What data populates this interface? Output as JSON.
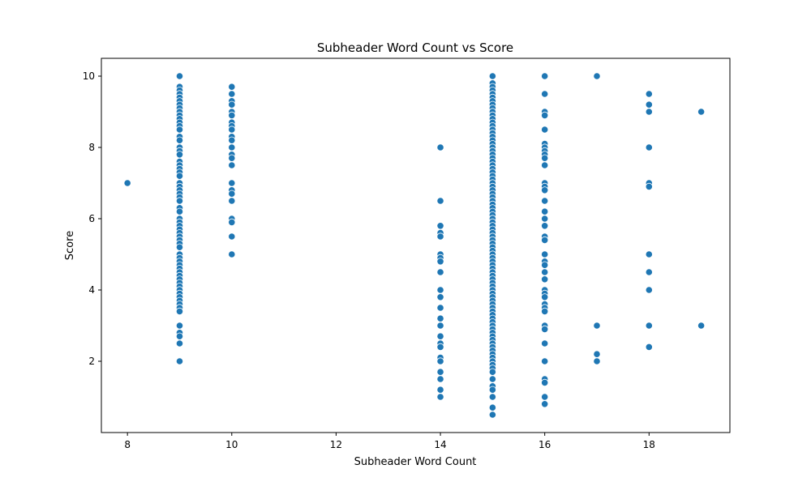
{
  "chart_data": {
    "type": "scatter",
    "title": "Subheader Word Count vs Score",
    "xlabel": "Subheader Word Count",
    "ylabel": "Score",
    "xlim": [
      7.5,
      19.55
    ],
    "ylim": [
      0.0,
      10.5
    ],
    "x_ticks": [
      8,
      10,
      12,
      14,
      16,
      18
    ],
    "y_ticks": [
      2,
      4,
      6,
      8,
      10
    ],
    "grid": false,
    "legend": "none",
    "marker_color": "#1f77b4",
    "points": [
      [
        8,
        7.0
      ],
      [
        9,
        10.0
      ],
      [
        9,
        9.7
      ],
      [
        9,
        9.6
      ],
      [
        9,
        9.5
      ],
      [
        9,
        9.4
      ],
      [
        9,
        9.3
      ],
      [
        9,
        9.2
      ],
      [
        9,
        9.1
      ],
      [
        9,
        9.0
      ],
      [
        9,
        8.9
      ],
      [
        9,
        8.8
      ],
      [
        9,
        8.7
      ],
      [
        9,
        8.6
      ],
      [
        9,
        8.5
      ],
      [
        9,
        8.3
      ],
      [
        9,
        8.2
      ],
      [
        9,
        8.0
      ],
      [
        9,
        7.9
      ],
      [
        9,
        7.8
      ],
      [
        9,
        7.6
      ],
      [
        9,
        7.5
      ],
      [
        9,
        7.4
      ],
      [
        9,
        7.3
      ],
      [
        9,
        7.2
      ],
      [
        9,
        7.0
      ],
      [
        9,
        6.9
      ],
      [
        9,
        6.8
      ],
      [
        9,
        6.7
      ],
      [
        9,
        6.6
      ],
      [
        9,
        6.5
      ],
      [
        9,
        6.3
      ],
      [
        9,
        6.2
      ],
      [
        9,
        6.0
      ],
      [
        9,
        5.9
      ],
      [
        9,
        5.8
      ],
      [
        9,
        5.7
      ],
      [
        9,
        5.6
      ],
      [
        9,
        5.5
      ],
      [
        9,
        5.4
      ],
      [
        9,
        5.3
      ],
      [
        9,
        5.2
      ],
      [
        9,
        5.0
      ],
      [
        9,
        4.9
      ],
      [
        9,
        4.8
      ],
      [
        9,
        4.7
      ],
      [
        9,
        4.6
      ],
      [
        9,
        4.5
      ],
      [
        9,
        4.4
      ],
      [
        9,
        4.3
      ],
      [
        9,
        4.2
      ],
      [
        9,
        4.1
      ],
      [
        9,
        4.0
      ],
      [
        9,
        3.9
      ],
      [
        9,
        3.8
      ],
      [
        9,
        3.7
      ],
      [
        9,
        3.6
      ],
      [
        9,
        3.5
      ],
      [
        9,
        3.4
      ],
      [
        9,
        3.0
      ],
      [
        9,
        2.8
      ],
      [
        9,
        2.7
      ],
      [
        9,
        2.5
      ],
      [
        9,
        2.0
      ],
      [
        10,
        9.7
      ],
      [
        10,
        9.5
      ],
      [
        10,
        9.3
      ],
      [
        10,
        9.2
      ],
      [
        10,
        9.0
      ],
      [
        10,
        8.9
      ],
      [
        10,
        8.7
      ],
      [
        10,
        8.6
      ],
      [
        10,
        8.5
      ],
      [
        10,
        8.3
      ],
      [
        10,
        8.2
      ],
      [
        10,
        8.0
      ],
      [
        10,
        7.8
      ],
      [
        10,
        7.7
      ],
      [
        10,
        7.5
      ],
      [
        10,
        7.0
      ],
      [
        10,
        6.8
      ],
      [
        10,
        6.7
      ],
      [
        10,
        6.5
      ],
      [
        10,
        6.0
      ],
      [
        10,
        5.9
      ],
      [
        10,
        5.5
      ],
      [
        10,
        5.0
      ],
      [
        14,
        8.0
      ],
      [
        14,
        6.5
      ],
      [
        14,
        5.8
      ],
      [
        14,
        5.6
      ],
      [
        14,
        5.5
      ],
      [
        14,
        5.0
      ],
      [
        14,
        4.9
      ],
      [
        14,
        4.8
      ],
      [
        14,
        4.5
      ],
      [
        14,
        4.0
      ],
      [
        14,
        3.8
      ],
      [
        14,
        3.5
      ],
      [
        14,
        3.2
      ],
      [
        14,
        3.0
      ],
      [
        14,
        2.7
      ],
      [
        14,
        2.5
      ],
      [
        14,
        2.4
      ],
      [
        14,
        2.1
      ],
      [
        14,
        2.0
      ],
      [
        14,
        1.7
      ],
      [
        14,
        1.5
      ],
      [
        14,
        1.2
      ],
      [
        14,
        1.0
      ],
      [
        15,
        10.0
      ],
      [
        15,
        9.8
      ],
      [
        15,
        9.7
      ],
      [
        15,
        9.6
      ],
      [
        15,
        9.5
      ],
      [
        15,
        9.4
      ],
      [
        15,
        9.3
      ],
      [
        15,
        9.2
      ],
      [
        15,
        9.1
      ],
      [
        15,
        9.0
      ],
      [
        15,
        8.9
      ],
      [
        15,
        8.8
      ],
      [
        15,
        8.7
      ],
      [
        15,
        8.6
      ],
      [
        15,
        8.5
      ],
      [
        15,
        8.4
      ],
      [
        15,
        8.3
      ],
      [
        15,
        8.2
      ],
      [
        15,
        8.1
      ],
      [
        15,
        8.0
      ],
      [
        15,
        7.9
      ],
      [
        15,
        7.8
      ],
      [
        15,
        7.7
      ],
      [
        15,
        7.6
      ],
      [
        15,
        7.5
      ],
      [
        15,
        7.4
      ],
      [
        15,
        7.3
      ],
      [
        15,
        7.2
      ],
      [
        15,
        7.1
      ],
      [
        15,
        7.0
      ],
      [
        15,
        6.9
      ],
      [
        15,
        6.8
      ],
      [
        15,
        6.7
      ],
      [
        15,
        6.6
      ],
      [
        15,
        6.5
      ],
      [
        15,
        6.4
      ],
      [
        15,
        6.3
      ],
      [
        15,
        6.2
      ],
      [
        15,
        6.1
      ],
      [
        15,
        6.0
      ],
      [
        15,
        5.9
      ],
      [
        15,
        5.8
      ],
      [
        15,
        5.7
      ],
      [
        15,
        5.6
      ],
      [
        15,
        5.5
      ],
      [
        15,
        5.4
      ],
      [
        15,
        5.3
      ],
      [
        15,
        5.2
      ],
      [
        15,
        5.1
      ],
      [
        15,
        5.0
      ],
      [
        15,
        4.9
      ],
      [
        15,
        4.8
      ],
      [
        15,
        4.7
      ],
      [
        15,
        4.6
      ],
      [
        15,
        4.5
      ],
      [
        15,
        4.4
      ],
      [
        15,
        4.3
      ],
      [
        15,
        4.2
      ],
      [
        15,
        4.1
      ],
      [
        15,
        4.0
      ],
      [
        15,
        3.9
      ],
      [
        15,
        3.8
      ],
      [
        15,
        3.7
      ],
      [
        15,
        3.6
      ],
      [
        15,
        3.5
      ],
      [
        15,
        3.4
      ],
      [
        15,
        3.3
      ],
      [
        15,
        3.2
      ],
      [
        15,
        3.1
      ],
      [
        15,
        3.0
      ],
      [
        15,
        2.9
      ],
      [
        15,
        2.8
      ],
      [
        15,
        2.7
      ],
      [
        15,
        2.6
      ],
      [
        15,
        2.5
      ],
      [
        15,
        2.4
      ],
      [
        15,
        2.3
      ],
      [
        15,
        2.2
      ],
      [
        15,
        2.1
      ],
      [
        15,
        2.0
      ],
      [
        15,
        1.9
      ],
      [
        15,
        1.8
      ],
      [
        15,
        1.7
      ],
      [
        15,
        1.5
      ],
      [
        15,
        1.3
      ],
      [
        15,
        1.2
      ],
      [
        15,
        1.0
      ],
      [
        15,
        0.7
      ],
      [
        15,
        0.5
      ],
      [
        16,
        10.0
      ],
      [
        16,
        9.5
      ],
      [
        16,
        9.0
      ],
      [
        16,
        8.9
      ],
      [
        16,
        8.5
      ],
      [
        16,
        8.1
      ],
      [
        16,
        8.0
      ],
      [
        16,
        7.9
      ],
      [
        16,
        7.8
      ],
      [
        16,
        7.7
      ],
      [
        16,
        7.5
      ],
      [
        16,
        7.0
      ],
      [
        16,
        6.9
      ],
      [
        16,
        6.8
      ],
      [
        16,
        6.5
      ],
      [
        16,
        6.2
      ],
      [
        16,
        6.0
      ],
      [
        16,
        5.8
      ],
      [
        16,
        5.5
      ],
      [
        16,
        5.4
      ],
      [
        16,
        5.0
      ],
      [
        16,
        4.8
      ],
      [
        16,
        4.7
      ],
      [
        16,
        4.5
      ],
      [
        16,
        4.3
      ],
      [
        16,
        4.0
      ],
      [
        16,
        3.9
      ],
      [
        16,
        3.8
      ],
      [
        16,
        3.6
      ],
      [
        16,
        3.5
      ],
      [
        16,
        3.4
      ],
      [
        16,
        3.0
      ],
      [
        16,
        2.9
      ],
      [
        16,
        2.5
      ],
      [
        16,
        2.0
      ],
      [
        16,
        1.5
      ],
      [
        16,
        1.4
      ],
      [
        16,
        1.0
      ],
      [
        16,
        0.8
      ],
      [
        17,
        10.0
      ],
      [
        17,
        3.0
      ],
      [
        17,
        2.2
      ],
      [
        17,
        2.0
      ],
      [
        18,
        9.5
      ],
      [
        18,
        9.2
      ],
      [
        18,
        9.0
      ],
      [
        18,
        8.0
      ],
      [
        18,
        7.0
      ],
      [
        18,
        6.9
      ],
      [
        18,
        5.0
      ],
      [
        18,
        4.5
      ],
      [
        18,
        4.0
      ],
      [
        18,
        3.0
      ],
      [
        18,
        2.4
      ],
      [
        19,
        9.0
      ],
      [
        19,
        3.0
      ]
    ]
  }
}
